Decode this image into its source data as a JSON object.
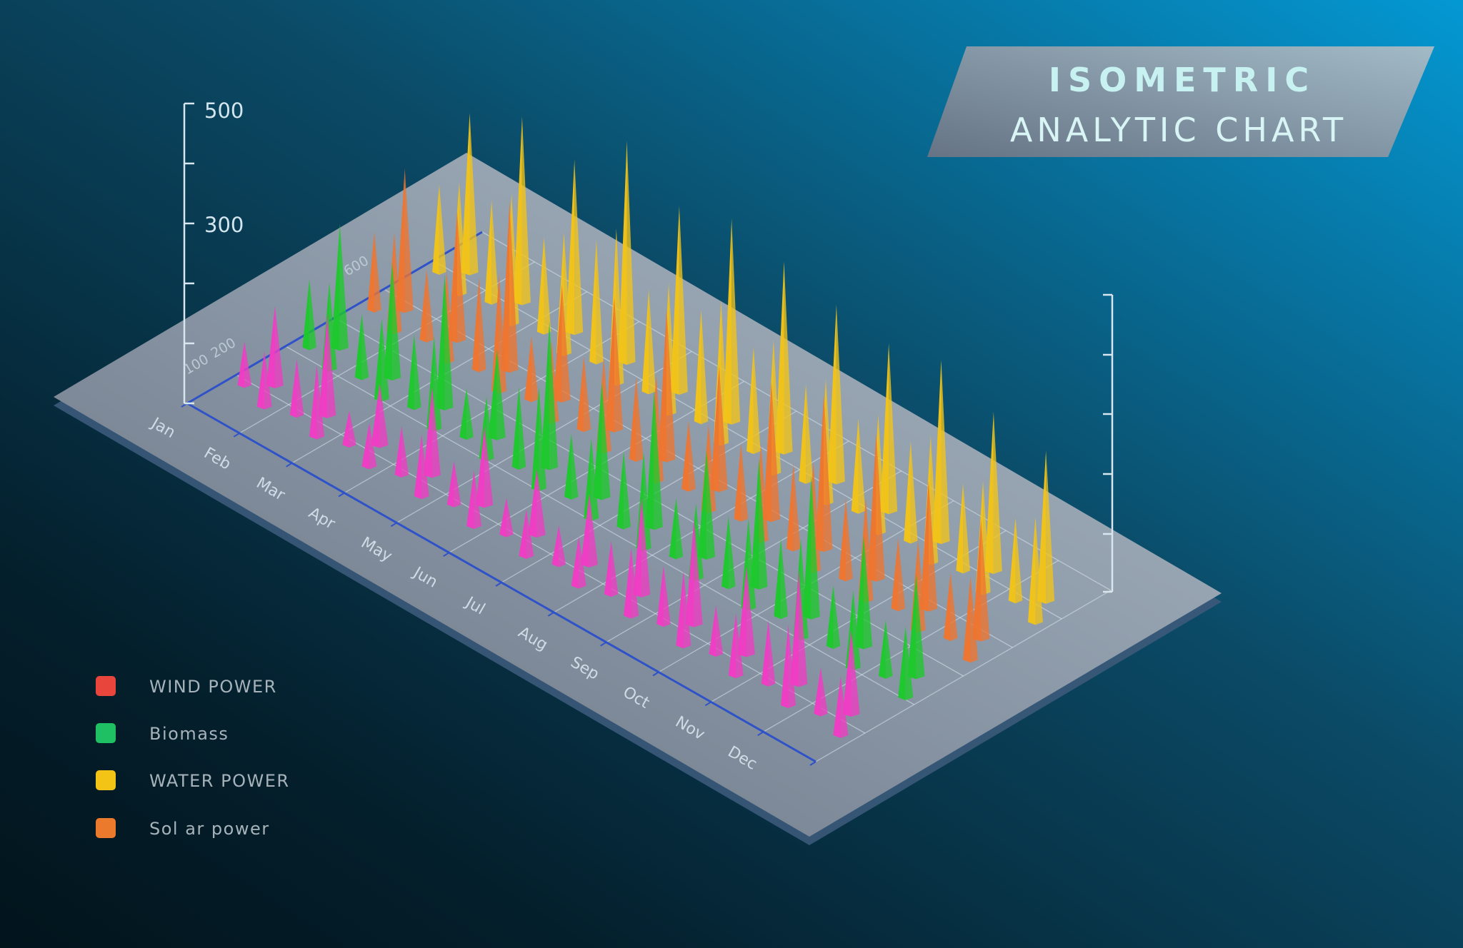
{
  "title": {
    "line1": "ISOMETRIC",
    "line2": "ANALYTIC CHART"
  },
  "colors": {
    "WIND POWER": "#e8453c",
    "Biomass": "#1fc063",
    "WATER POWER": "#f3c316",
    "Solar power": "#ec7a2c",
    "pink_series": "#f03cc4",
    "spike_green": "#1dc92c",
    "spike_yellow": "#f2c418",
    "spike_orange": "#ee7530"
  },
  "chart_data": {
    "type": "isometric-spike",
    "title": "ISOMETRIC ANALYTIC CHART",
    "y_ticks": [
      "500",
      "300"
    ],
    "depth_ticks": [
      "100",
      "200",
      "600"
    ],
    "categories": [
      "Jan",
      "Feb",
      "Mar",
      "Apr",
      "May",
      "Jun",
      "Jul",
      "Aug",
      "Sep",
      "Oct",
      "Nov",
      "Dec"
    ],
    "legend": [
      "WIND POWER",
      "Biomass",
      "WATER POWER",
      "Sol ar power"
    ],
    "series": [
      {
        "row": 0,
        "color": "pink_series",
        "values": [
          180,
          230,
          140,
          200,
          180,
          150,
          160,
          220,
          240,
          200,
          260,
          190
        ]
      },
      {
        "row": 1,
        "color": "spike_green",
        "values": [
          280,
          260,
          300,
          200,
          330,
          260,
          310,
          240,
          290,
          320,
          250,
          230
        ]
      },
      {
        "row": 2,
        "color": "spike_orange",
        "values": [
          320,
          290,
          380,
          260,
          300,
          340,
          280,
          310,
          350,
          330,
          290,
          270
        ]
      },
      {
        "row": 3,
        "color": "spike_yellow",
        "values": [
          360,
          420,
          390,
          500,
          420,
          460,
          430,
          400,
          380,
          410,
          360,
          340
        ]
      }
    ]
  }
}
